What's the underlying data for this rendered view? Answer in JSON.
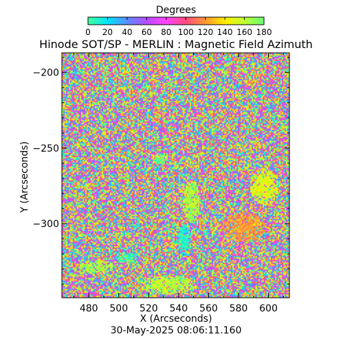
{
  "chart_data": {
    "type": "heatmap",
    "title": "Hinode SOT/SP - MERLIN : Magnetic Field Azimuth",
    "xlabel": "X (Arcseconds)",
    "ylabel": "Y (Arcseconds)",
    "timestamp": "30-May-2025 08:06:11.160",
    "xlim": [
      462,
      614
    ],
    "ylim": [
      -349,
      -187
    ],
    "x_ticks": [
      480,
      500,
      520,
      540,
      560,
      580,
      600
    ],
    "y_ticks": [
      -200,
      -250,
      -300
    ],
    "colorbar": {
      "label": "Degrees",
      "range": [
        0,
        180
      ],
      "ticks": [
        0,
        20,
        40,
        60,
        80,
        100,
        120,
        140,
        160,
        180
      ],
      "stops": [
        "#44ff99",
        "#00e5ff",
        "#5a8cff",
        "#b84cff",
        "#ff44ff",
        "#ff4b7f",
        "#ff9933",
        "#ffee00",
        "#bfff30",
        "#66ff77"
      ]
    },
    "features": [
      {
        "label": "coherent azimuth region",
        "value_deg": 160,
        "center": [
          532,
          -340
        ],
        "radius": [
          20,
          6
        ]
      },
      {
        "label": "coherent azimuth region",
        "value_deg": 165,
        "center": [
          548,
          -285
        ],
        "radius": [
          6,
          14
        ]
      },
      {
        "label": "coherent azimuth region",
        "value_deg": 10,
        "center": [
          543,
          -310
        ],
        "radius": [
          5,
          10
        ]
      },
      {
        "label": "coherent azimuth region",
        "value_deg": 120,
        "center": [
          583,
          -302
        ],
        "radius": [
          15,
          10
        ]
      },
      {
        "label": "coherent azimuth region",
        "value_deg": 150,
        "center": [
          597,
          -275
        ],
        "radius": [
          10,
          12
        ]
      },
      {
        "label": "coherent azimuth region",
        "value_deg": 165,
        "center": [
          485,
          -328
        ],
        "radius": [
          12,
          4
        ]
      },
      {
        "label": "coherent azimuth region",
        "value_deg": 5,
        "center": [
          505,
          -322
        ],
        "radius": [
          8,
          4
        ]
      },
      {
        "label": "coherent azimuth region",
        "value_deg": 175,
        "center": [
          527,
          -257
        ],
        "radius": [
          5,
          4
        ]
      }
    ]
  }
}
